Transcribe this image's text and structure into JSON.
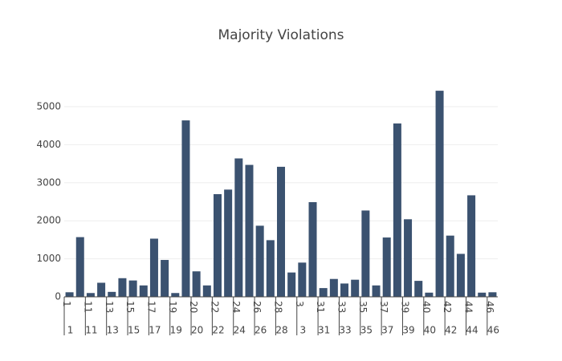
{
  "chart_data": {
    "type": "bar",
    "title": "Majority Violations",
    "categories": [
      "1",
      null,
      "11",
      null,
      "13",
      null,
      "15",
      null,
      "17",
      null,
      "19",
      null,
      "20",
      null,
      "22",
      null,
      "24",
      null,
      "26",
      null,
      "28",
      null,
      "3",
      null,
      "31",
      null,
      "33",
      null,
      "35",
      null,
      "37",
      null,
      "39",
      null,
      "40",
      null,
      "42",
      null,
      "44",
      null,
      "46"
    ],
    "values": [
      120,
      1570,
      100,
      370,
      130,
      490,
      430,
      300,
      1530,
      970,
      100,
      4640,
      670,
      300,
      2700,
      2820,
      3640,
      3470,
      1870,
      1490,
      3420,
      640,
      900,
      2490,
      230,
      470,
      350,
      450,
      2270,
      300,
      1560,
      4560,
      2040,
      420,
      110,
      5420,
      1610,
      1130,
      2670,
      110,
      120
    ],
    "color": "#3b5270",
    "ylim": [
      0,
      5705
    ],
    "yticks": [
      0,
      1000,
      2000,
      3000,
      4000,
      5000
    ],
    "grid": true
  }
}
